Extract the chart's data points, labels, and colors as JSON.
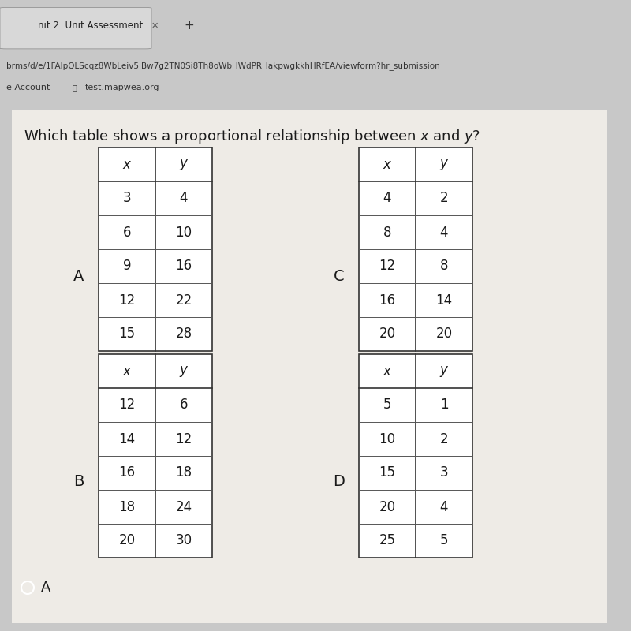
{
  "browser_tab": "nit 2: Unit Assessment",
  "browser_url": "brms/d/e/1FAlpQLScqz8WbLeiv5lBw7g2TN0Si8Th8oWbHWdPRHakpwgkkhHRfEA/viewform?hr_submission",
  "browser_account": "e Account",
  "browser_site": "test.mapwea.org",
  "title": "Which table shows a proportional relationship between $x$ and $y$?",
  "outer_bg": "#c8c8c8",
  "tab_bg": "#d4d4d4",
  "content_bg": "#e8e5e0",
  "table_bg": "#ffffff",
  "tables": {
    "A": {
      "label": "A",
      "headers": [
        "x",
        "y"
      ],
      "rows": [
        [
          3,
          4
        ],
        [
          6,
          10
        ],
        [
          9,
          16
        ],
        [
          12,
          22
        ],
        [
          15,
          28
        ]
      ]
    },
    "B": {
      "label": "B",
      "headers": [
        "x",
        "y"
      ],
      "rows": [
        [
          12,
          6
        ],
        [
          14,
          12
        ],
        [
          16,
          18
        ],
        [
          18,
          24
        ],
        [
          20,
          30
        ]
      ]
    },
    "C": {
      "label": "C",
      "headers": [
        "x",
        "y"
      ],
      "rows": [
        [
          4,
          2
        ],
        [
          8,
          4
        ],
        [
          12,
          8
        ],
        [
          16,
          14
        ],
        [
          20,
          20
        ]
      ]
    },
    "D": {
      "label": "D",
      "headers": [
        "x",
        "y"
      ],
      "rows": [
        [
          5,
          1
        ],
        [
          10,
          2
        ],
        [
          15,
          3
        ],
        [
          20,
          4
        ],
        [
          25,
          5
        ]
      ]
    }
  },
  "answer_text": "A",
  "header_fontsize": 12,
  "cell_fontsize": 12,
  "label_fontsize": 14,
  "title_fontsize": 13
}
